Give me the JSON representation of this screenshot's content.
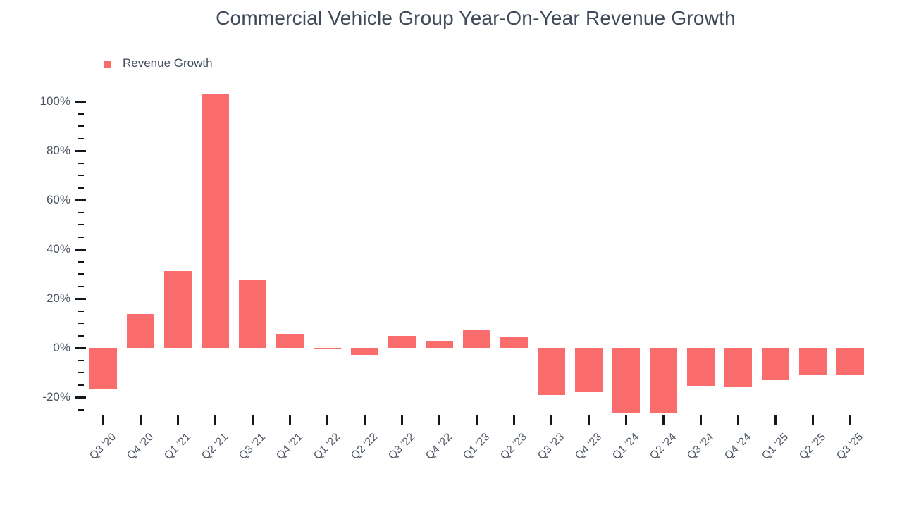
{
  "header": {
    "title": "Commercial Vehicle Group Year-On-Year Revenue Growth"
  },
  "legend": {
    "items": [
      {
        "label": "Revenue Growth",
        "color": "#fb6d6c"
      }
    ]
  },
  "colors": {
    "bar": "#fb6d6c",
    "title_text": "#3e4a59",
    "axis_label_text": "#4a5462",
    "tick": "#14181d",
    "background": "#ffffff"
  },
  "chart_data": {
    "type": "bar",
    "title": "Commercial Vehicle Group Year-On-Year Revenue Growth",
    "series_name": "Revenue Growth",
    "categories": [
      "Q3 '20",
      "Q4 '20",
      "Q1 '21",
      "Q2 '21",
      "Q3 '21",
      "Q4 '21",
      "Q1 '22",
      "Q2 '22",
      "Q3 '22",
      "Q4 '22",
      "Q1 '23",
      "Q2 '23",
      "Q3 '23",
      "Q4 '23",
      "Q1 '24",
      "Q2 '24",
      "Q3 '24",
      "Q4 '24",
      "Q1 '25",
      "Q2 '25",
      "Q3 '25"
    ],
    "values": [
      -16.6,
      13.7,
      31.1,
      103,
      27.3,
      5.7,
      -0.5,
      -2.9,
      4.9,
      2.8,
      7.3,
      4.2,
      -19.1,
      -17.7,
      -26.5,
      -26.5,
      -15.4,
      -16,
      -13.1,
      -11.2,
      -11.2
    ],
    "unit": "%",
    "xlabel": "",
    "ylabel": "",
    "ylim": [
      -27.5,
      105
    ],
    "ytick_labels": [
      "100%",
      "80%",
      "60%",
      "40%",
      "20%",
      "0%",
      "-20%"
    ],
    "ytick_values": [
      100,
      80,
      60,
      40,
      20,
      0,
      -20
    ],
    "minor_tick_step": 5,
    "minor_tick_min": -25,
    "minor_tick_max": 95,
    "grid": false,
    "legend_position": "top-left",
    "bar_color": "#fb6d6c"
  }
}
